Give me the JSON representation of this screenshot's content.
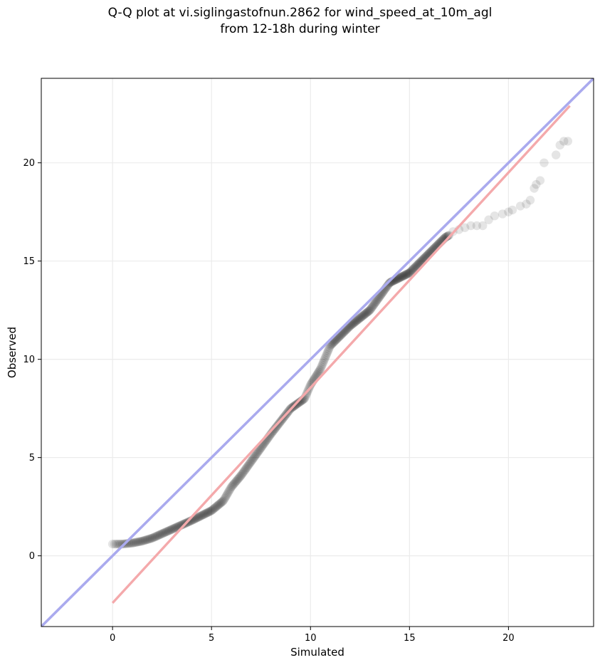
{
  "chart_data": {
    "type": "scatter",
    "title": "Q-Q plot at vi.siglingastofnun.2862 for wind_speed_at_10m_agl",
    "subtitle": "from 12-18h during winter",
    "xlabel": "Simulated",
    "ylabel": "Observed",
    "xlim": [
      -3.6,
      24.3
    ],
    "ylim": [
      -3.6,
      24.3
    ],
    "x_ticks": [
      0,
      5,
      10,
      15,
      20
    ],
    "y_ticks": [
      0,
      5,
      10,
      15,
      20
    ],
    "grid": true,
    "point_color": "#000000",
    "point_opacity": 0.1,
    "reference_line": {
      "color": "#aaaaee",
      "points": [
        [
          -3.6,
          -3.6
        ],
        [
          24.3,
          24.3
        ]
      ]
    },
    "fit_line": {
      "color": "#f4a9ab",
      "points": [
        [
          0.0,
          -2.4
        ],
        [
          23.1,
          22.9
        ]
      ]
    },
    "quantile_knots": {
      "x": [
        0.0,
        0.5,
        1.0,
        1.5,
        2.0,
        3.0,
        4.0,
        5.0,
        5.6,
        6.0,
        6.5,
        7.0,
        8.0,
        9.0,
        9.7,
        10.0,
        10.5,
        11.0,
        12.0,
        13.0,
        14.0,
        15.0,
        16.0,
        16.8,
        17.5,
        18.0,
        18.7,
        19.3,
        20.0,
        20.3,
        21.0,
        21.6,
        22.5,
        23.0
      ],
      "y": [
        0.6,
        0.6,
        0.65,
        0.75,
        0.9,
        1.35,
        1.8,
        2.3,
        2.8,
        3.5,
        4.1,
        4.8,
        6.2,
        7.5,
        8.0,
        8.7,
        9.5,
        10.7,
        11.7,
        12.5,
        13.9,
        14.4,
        15.4,
        16.2,
        16.6,
        16.8,
        17.0,
        17.3,
        17.6,
        17.7,
        18.0,
        18.8,
        20.7,
        21.1
      ]
    },
    "tail_points": {
      "x": [
        17.2,
        17.5,
        17.8,
        18.1,
        18.4,
        18.7,
        19.0,
        19.3,
        19.7,
        20.0,
        20.2,
        20.6,
        20.9,
        21.1,
        21.3,
        21.4,
        21.6,
        21.8,
        22.4,
        22.6,
        22.8,
        23.0
      ],
      "y": [
        16.5,
        16.6,
        16.7,
        16.8,
        16.8,
        16.8,
        17.1,
        17.3,
        17.4,
        17.5,
        17.6,
        17.8,
        17.9,
        18.1,
        18.7,
        18.9,
        19.1,
        20.0,
        20.4,
        20.9,
        21.1,
        21.1
      ]
    },
    "n_points": 420
  }
}
